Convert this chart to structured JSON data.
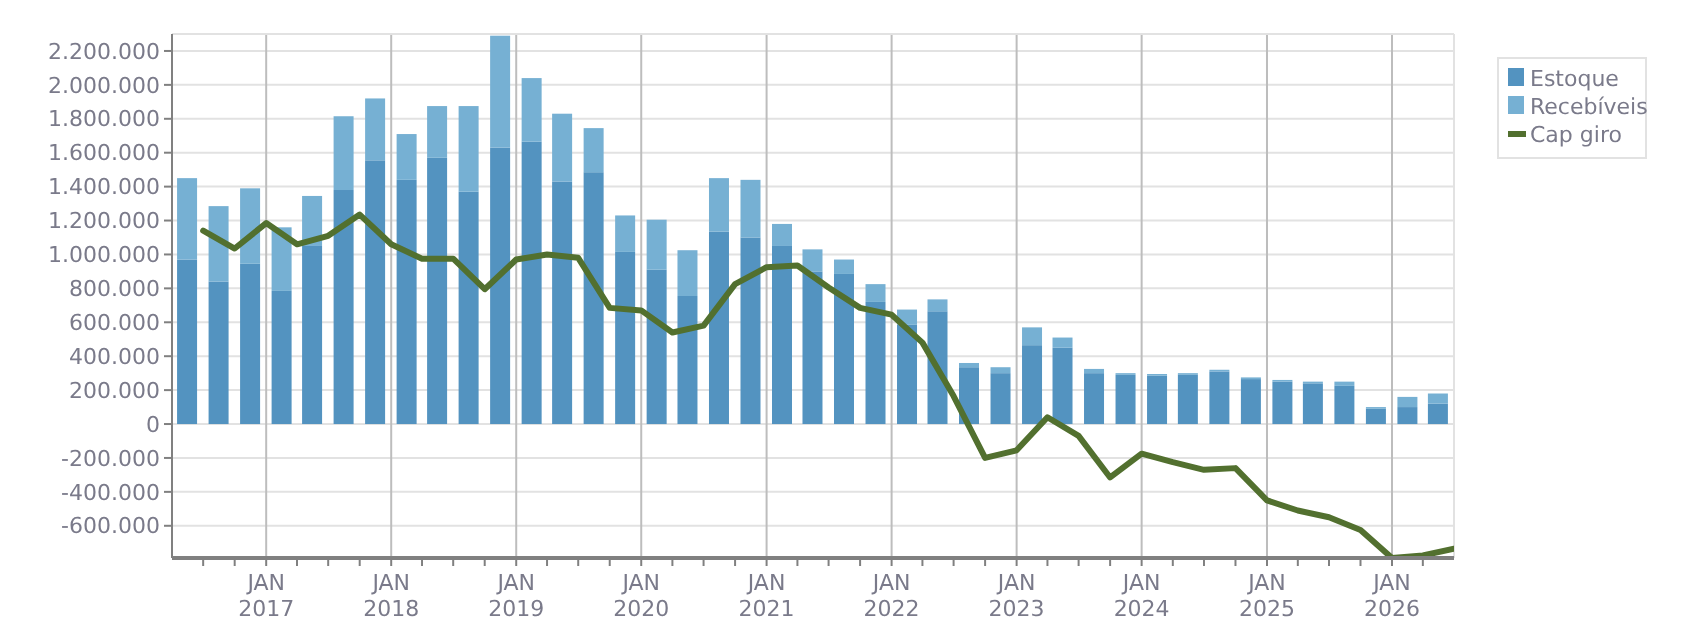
{
  "chart_data": {
    "type": "bar",
    "stacked": true,
    "grid": true,
    "legend": "top right",
    "xlim": [
      "2016-04-01",
      "2026-07-01"
    ],
    "xticks": [
      {
        "value": "2016-07-01",
        "label": null
      },
      {
        "value": "2016-10-01",
        "label": null
      },
      {
        "value": "2017-01-01",
        "label": "JAN 2017"
      },
      {
        "value": "2017-04-01",
        "label": null
      },
      {
        "value": "2017-07-01",
        "label": null
      },
      {
        "value": "2017-10-01",
        "label": null
      },
      {
        "value": "2018-01-01",
        "label": "JAN 2018"
      },
      {
        "value": "2018-04-01",
        "label": null
      },
      {
        "value": "2018-07-01",
        "label": null
      },
      {
        "value": "2018-10-01",
        "label": null
      },
      {
        "value": "2019-01-01",
        "label": "JAN 2019"
      },
      {
        "value": "2019-04-01",
        "label": null
      },
      {
        "value": "2019-07-01",
        "label": null
      },
      {
        "value": "2019-10-01",
        "label": null
      },
      {
        "value": "2020-01-01",
        "label": "JAN 2020"
      },
      {
        "value": "2020-04-01",
        "label": null
      },
      {
        "value": "2020-07-01",
        "label": null
      },
      {
        "value": "2020-10-01",
        "label": null
      },
      {
        "value": "2021-01-01",
        "label": "JAN 2021"
      },
      {
        "value": "2021-04-01",
        "label": null
      },
      {
        "value": "2021-07-01",
        "label": null
      },
      {
        "value": "2021-10-01",
        "label": null
      },
      {
        "value": "2022-01-01",
        "label": "JAN 2022"
      },
      {
        "value": "2022-04-01",
        "label": null
      },
      {
        "value": "2022-07-01",
        "label": null
      },
      {
        "value": "2022-10-01",
        "label": null
      },
      {
        "value": "2023-01-01",
        "label": "JAN 2023"
      },
      {
        "value": "2023-04-01",
        "label": null
      },
      {
        "value": "2023-07-01",
        "label": null
      },
      {
        "value": "2023-10-01",
        "label": null
      },
      {
        "value": "2024-01-01",
        "label": "JAN 2024"
      },
      {
        "value": "2024-04-01",
        "label": null
      },
      {
        "value": "2024-07-01",
        "label": null
      },
      {
        "value": "2024-10-01",
        "label": null
      },
      {
        "value": "2025-01-01",
        "label": "JAN 2025"
      },
      {
        "value": "2025-04-01",
        "label": null
      },
      {
        "value": "2025-07-01",
        "label": null
      },
      {
        "value": "2025-10-01",
        "label": null
      },
      {
        "value": "2026-01-01",
        "label": "JAN 2026"
      },
      {
        "value": "2026-04-01",
        "label": null
      }
    ],
    "ylim": [
      -790000,
      2300000
    ],
    "yticks": [
      {
        "value": -600000,
        "label": "-600.000"
      },
      {
        "value": -400000,
        "label": "-400.000"
      },
      {
        "value": -200000,
        "label": "-200.000"
      },
      0,
      {
        "value": 200000,
        "label": "200.000"
      },
      {
        "value": 400000,
        "label": "400.000"
      },
      {
        "value": 600000,
        "label": "600.000"
      },
      {
        "value": 800000,
        "label": "800.000"
      },
      {
        "value": 1000000,
        "label": "1.000.000"
      },
      {
        "value": 1200000,
        "label": "1.200.000"
      },
      {
        "value": 1400000,
        "label": "1.400.000"
      },
      {
        "value": 1600000,
        "label": "1.600.000"
      },
      {
        "value": 1800000,
        "label": "1.800.000"
      },
      {
        "value": 2000000,
        "label": "2.000.000"
      },
      {
        "value": 2200000,
        "label": "2.200.000"
      }
    ],
    "x": [
      "2016-05-15",
      "2016-08-15",
      "2016-11-15",
      "2017-02-15",
      "2017-05-15",
      "2017-08-15",
      "2017-11-15",
      "2018-02-15",
      "2018-05-15",
      "2018-08-15",
      "2018-11-15",
      "2019-02-15",
      "2019-05-15",
      "2019-08-15",
      "2019-11-15",
      "2020-02-15",
      "2020-05-15",
      "2020-08-15",
      "2020-11-15",
      "2021-02-15",
      "2021-05-15",
      "2021-08-15",
      "2021-11-15",
      "2022-02-15",
      "2022-05-15",
      "2022-08-15",
      "2022-11-15",
      "2023-02-15",
      "2023-05-15",
      "2023-08-15",
      "2023-11-15",
      "2024-02-15",
      "2024-05-15",
      "2024-08-15",
      "2024-11-15",
      "2025-02-15",
      "2025-05-15",
      "2025-08-15",
      "2025-11-15",
      "2026-02-15",
      "2026-05-15"
    ],
    "series": [
      {
        "name": "Estoque",
        "color": "#5393c0",
        "values": [
          970000,
          840000,
          945000,
          785000,
          1050000,
          1380000,
          1555000,
          1440000,
          1570000,
          1370000,
          1630000,
          1665000,
          1430000,
          1485000,
          1015000,
          910000,
          755000,
          1135000,
          1100000,
          1050000,
          900000,
          885000,
          720000,
          585000,
          665000,
          335000,
          300000,
          465000,
          450000,
          300000,
          290000,
          285000,
          290000,
          310000,
          265000,
          250000,
          240000,
          225000,
          90000,
          100000,
          120000
        ]
      },
      {
        "name": "Recebíveis",
        "color": "#76b0d3",
        "values": [
          480000,
          445000,
          445000,
          375000,
          295000,
          435000,
          365000,
          270000,
          305000,
          505000,
          660000,
          375000,
          400000,
          260000,
          215000,
          295000,
          270000,
          315000,
          340000,
          130000,
          130000,
          85000,
          105000,
          90000,
          70000,
          25000,
          35000,
          105000,
          60000,
          25000,
          10000,
          10000,
          10000,
          10000,
          10000,
          10000,
          10000,
          25000,
          10000,
          60000,
          60000
        ]
      },
      {
        "name": "Cap giro",
        "type": "line",
        "color": "#52702f",
        "x": [
          "2016-07-01",
          "2016-10-01",
          "2017-01-01",
          "2017-04-01",
          "2017-07-01",
          "2017-10-01",
          "2018-01-01",
          "2018-04-01",
          "2018-07-01",
          "2018-10-01",
          "2019-01-01",
          "2019-04-01",
          "2019-07-01",
          "2019-10-01",
          "2020-01-01",
          "2020-04-01",
          "2020-07-01",
          "2020-10-01",
          "2021-01-01",
          "2021-04-01",
          "2021-07-01",
          "2021-10-01",
          "2022-01-01",
          "2022-04-01",
          "2022-07-01",
          "2022-10-01",
          "2023-01-01",
          "2023-04-01",
          "2023-07-01",
          "2023-10-01",
          "2024-01-01",
          "2024-04-01",
          "2024-07-01",
          "2024-10-01",
          "2025-01-01",
          "2025-04-01",
          "2025-07-01",
          "2025-10-01",
          "2026-01-01",
          "2026-04-01",
          "2026-07-01"
        ],
        "values": [
          1140000,
          1035000,
          1185000,
          1060000,
          1110000,
          1235000,
          1060000,
          975000,
          975000,
          795000,
          970000,
          1000000,
          980000,
          685000,
          670000,
          540000,
          580000,
          825000,
          925000,
          935000,
          805000,
          685000,
          645000,
          480000,
          165000,
          -200000,
          -155000,
          40000,
          -70000,
          -315000,
          -175000,
          -225000,
          -270000,
          -260000,
          -450000,
          -510000,
          -550000,
          -625000,
          -790000,
          -775000,
          -735000
        ]
      }
    ]
  }
}
